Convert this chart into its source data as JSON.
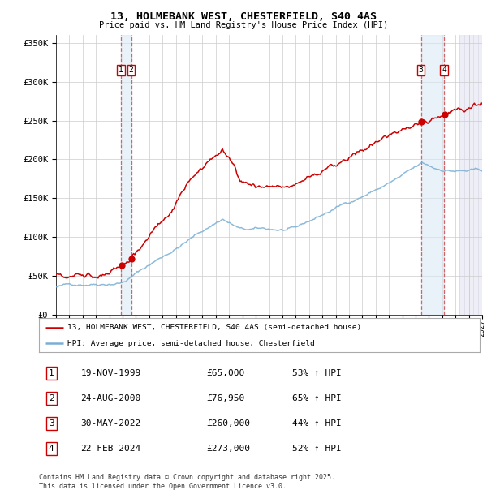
{
  "title": "13, HOLMEBANK WEST, CHESTERFIELD, S40 4AS",
  "subtitle": "Price paid vs. HM Land Registry's House Price Index (HPI)",
  "footer1": "Contains HM Land Registry data © Crown copyright and database right 2025.",
  "footer2": "This data is licensed under the Open Government Licence v3.0.",
  "legend_red": "13, HOLMEBANK WEST, CHESTERFIELD, S40 4AS (semi-detached house)",
  "legend_blue": "HPI: Average price, semi-detached house, Chesterfield",
  "transactions": [
    {
      "num": 1,
      "date": "19-NOV-1999",
      "year": 1999.88,
      "price": 65000,
      "pct": "53% ↑ HPI"
    },
    {
      "num": 2,
      "date": "24-AUG-2000",
      "year": 2000.64,
      "price": 76950,
      "pct": "65% ↑ HPI"
    },
    {
      "num": 3,
      "date": "30-MAY-2022",
      "year": 2022.41,
      "price": 260000,
      "pct": "44% ↑ HPI"
    },
    {
      "num": 4,
      "date": "22-FEB-2024",
      "year": 2024.14,
      "price": 273000,
      "pct": "52% ↑ HPI"
    }
  ],
  "xmin": 1995.0,
  "xmax": 2027.0,
  "ymin": 0,
  "ymax": 360000,
  "yticks": [
    0,
    50000,
    100000,
    150000,
    200000,
    250000,
    300000,
    350000
  ],
  "ytick_labels": [
    "£0",
    "£50K",
    "£100K",
    "£150K",
    "£200K",
    "£250K",
    "£300K",
    "£350K"
  ],
  "red_color": "#cc0000",
  "blue_color": "#7aafd4",
  "background_color": "#ffffff",
  "grid_color": "#cccccc",
  "shade_color": "#d8e8f5",
  "hatch_color": "#d0d0e0",
  "future_start": 2025.3
}
